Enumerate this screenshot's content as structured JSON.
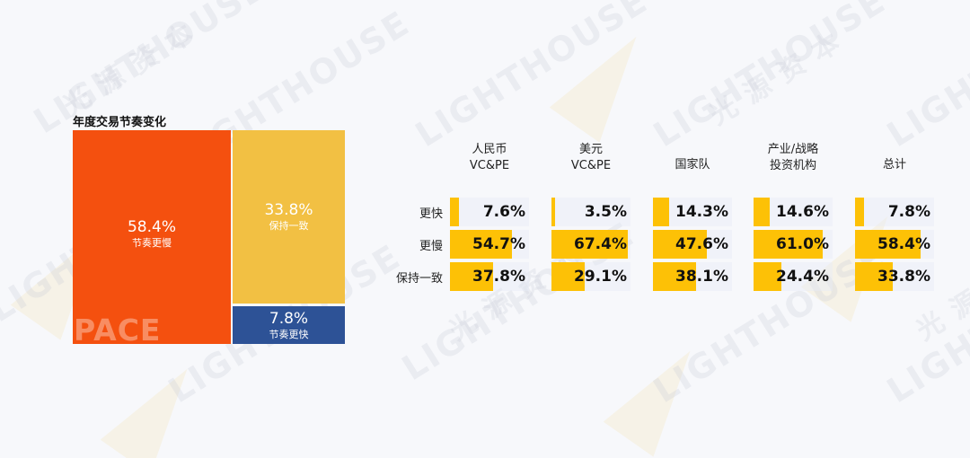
{
  "watermark": {
    "latin": "LIGHTHOUSE",
    "cjk": "光 源 资 本"
  },
  "title": "年度交易节奏变化",
  "treemap": {
    "slower": {
      "pct": "58.4%",
      "label": "节奏更慢",
      "color": "#f4500f"
    },
    "same": {
      "pct": "33.8%",
      "label": "保持一致",
      "color": "#f2c043"
    },
    "faster": {
      "pct": "7.8%",
      "label": "节奏更快",
      "color": "#2d5296"
    },
    "mark": "PACE"
  },
  "chart_data": {
    "type": "table",
    "columns": [
      {
        "line1": "人民币",
        "line2": "VC&PE"
      },
      {
        "line1": "美元",
        "line2": "VC&PE"
      },
      {
        "line1": "国家队",
        "line2": ""
      },
      {
        "line1": "产业/战略",
        "line2": "投资机构"
      },
      {
        "line1": "总计",
        "line2": ""
      }
    ],
    "rows": [
      {
        "label": "更快",
        "values": [
          7.6,
          3.5,
          14.3,
          14.6,
          7.8
        ],
        "display": [
          "7.6%",
          "3.5%",
          "14.3%",
          "14.6%",
          "7.8%"
        ]
      },
      {
        "label": "更慢",
        "values": [
          54.7,
          67.4,
          47.6,
          61.0,
          58.4
        ],
        "display": [
          "54.7%",
          "67.4%",
          "47.6%",
          "61.0%",
          "58.4%"
        ]
      },
      {
        "label": "保持一致",
        "values": [
          37.8,
          29.1,
          38.1,
          24.4,
          33.8
        ],
        "display": [
          "37.8%",
          "29.1%",
          "38.1%",
          "24.4%",
          "33.8%"
        ]
      }
    ],
    "bar_color": "#fdc106"
  }
}
